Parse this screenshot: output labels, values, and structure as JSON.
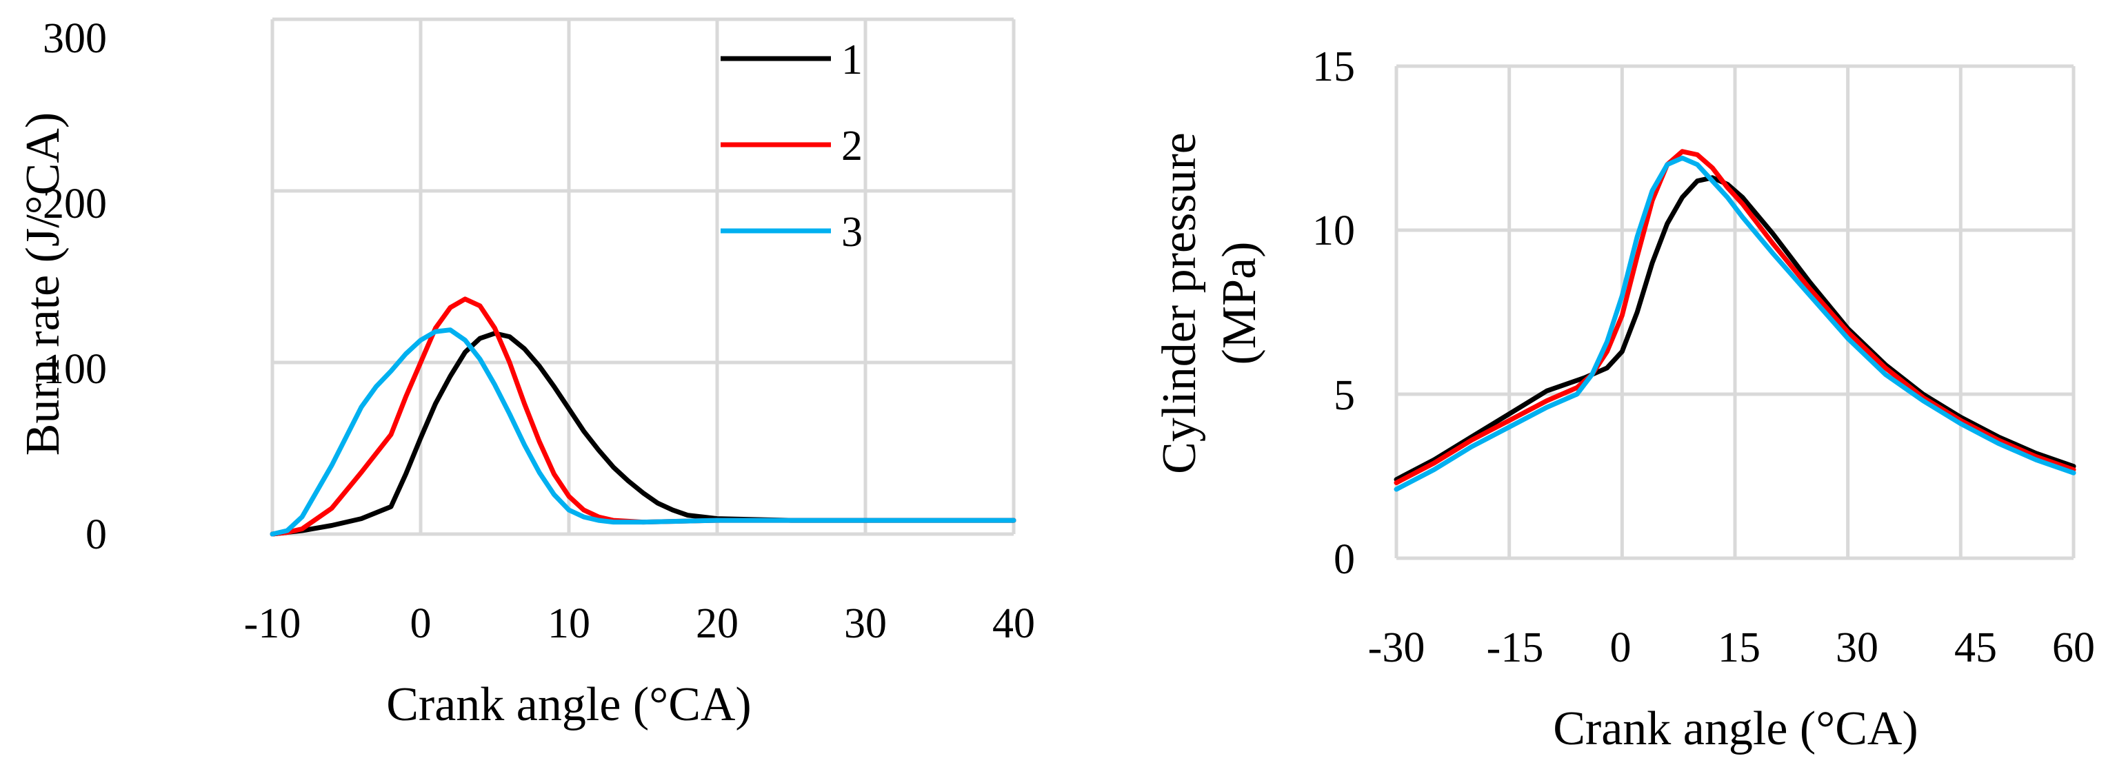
{
  "chart_data": [
    {
      "type": "line",
      "title": "",
      "xlabel": "Crank angle (°CA)",
      "ylabel": "Burn rate (J/°CA)",
      "xlim": [
        -10,
        40
      ],
      "ylim": [
        0,
        300
      ],
      "xticks": [
        "-10",
        "0",
        "10",
        "20",
        "30",
        "40"
      ],
      "yticks": [
        "0",
        "100",
        "200",
        "300"
      ],
      "grid": true,
      "legend_position": "top-right",
      "series": [
        {
          "name": "1",
          "color": "#000000",
          "points": [
            [
              -10,
              0
            ],
            [
              -9,
              1
            ],
            [
              -8,
              2
            ],
            [
              -6,
              5
            ],
            [
              -4,
              9
            ],
            [
              -2,
              16
            ],
            [
              -1,
              35
            ],
            [
              0,
              56
            ],
            [
              1,
              76
            ],
            [
              2,
              92
            ],
            [
              3,
              106
            ],
            [
              4,
              114
            ],
            [
              5,
              117
            ],
            [
              6,
              115
            ],
            [
              7,
              108
            ],
            [
              8,
              98
            ],
            [
              9,
              86
            ],
            [
              10,
              73
            ],
            [
              11,
              60
            ],
            [
              12,
              49
            ],
            [
              13,
              39
            ],
            [
              14,
              31
            ],
            [
              15,
              24
            ],
            [
              16,
              18
            ],
            [
              17,
              14
            ],
            [
              18,
              11
            ],
            [
              20,
              9
            ],
            [
              25,
              8
            ],
            [
              30,
              8
            ],
            [
              35,
              8
            ],
            [
              40,
              8
            ]
          ]
        },
        {
          "name": "2",
          "color": "#ff0000",
          "points": [
            [
              -10,
              0
            ],
            [
              -9,
              1
            ],
            [
              -8,
              3
            ],
            [
              -6,
              15
            ],
            [
              -4,
              36
            ],
            [
              -2,
              58
            ],
            [
              -1,
              80
            ],
            [
              0,
              100
            ],
            [
              1,
              120
            ],
            [
              2,
              132
            ],
            [
              3,
              137
            ],
            [
              4,
              133
            ],
            [
              5,
              120
            ],
            [
              6,
              100
            ],
            [
              7,
              76
            ],
            [
              8,
              54
            ],
            [
              9,
              35
            ],
            [
              10,
              22
            ],
            [
              11,
              14
            ],
            [
              12,
              10
            ],
            [
              13,
              8
            ],
            [
              15,
              7
            ],
            [
              20,
              8
            ],
            [
              30,
              8
            ],
            [
              40,
              8
            ]
          ]
        },
        {
          "name": "3",
          "color": "#00b0f0",
          "points": [
            [
              -10,
              0
            ],
            [
              -9,
              2
            ],
            [
              -8,
              10
            ],
            [
              -7,
              25
            ],
            [
              -6,
              40
            ],
            [
              -5,
              57
            ],
            [
              -4,
              74
            ],
            [
              -3,
              86
            ],
            [
              -2,
              95
            ],
            [
              -1,
              105
            ],
            [
              0,
              113
            ],
            [
              1,
              118
            ],
            [
              2,
              119
            ],
            [
              3,
              113
            ],
            [
              4,
              102
            ],
            [
              5,
              87
            ],
            [
              6,
              70
            ],
            [
              7,
              52
            ],
            [
              8,
              36
            ],
            [
              9,
              23
            ],
            [
              10,
              14
            ],
            [
              11,
              10
            ],
            [
              12,
              8
            ],
            [
              13,
              7
            ],
            [
              15,
              7
            ],
            [
              20,
              8
            ],
            [
              30,
              8
            ],
            [
              40,
              8
            ]
          ]
        }
      ]
    },
    {
      "type": "line",
      "title": "",
      "xlabel": "Crank angle (°CA)",
      "ylabel": "Cylinder pressure (MPa)",
      "ylabel_lines": [
        "Cylinder pressure",
        "(MPa)"
      ],
      "xlim": [
        -30,
        60
      ],
      "ylim": [
        0,
        15
      ],
      "xticks": [
        "-30",
        "-15",
        "0",
        "15",
        "30",
        "45",
        "60"
      ],
      "yticks": [
        "0",
        "5",
        "10",
        "15"
      ],
      "grid": true,
      "series": [
        {
          "name": "1",
          "color": "#000000",
          "points": [
            [
              -30,
              2.4
            ],
            [
              -25,
              3.0
            ],
            [
              -20,
              3.7
            ],
            [
              -15,
              4.4
            ],
            [
              -10,
              5.1
            ],
            [
              -5,
              5.5
            ],
            [
              -2,
              5.8
            ],
            [
              0,
              6.3
            ],
            [
              2,
              7.5
            ],
            [
              4,
              9.0
            ],
            [
              6,
              10.2
            ],
            [
              8,
              11.0
            ],
            [
              10,
              11.5
            ],
            [
              12,
              11.6
            ],
            [
              14,
              11.4
            ],
            [
              16,
              11.0
            ],
            [
              20,
              9.9
            ],
            [
              25,
              8.4
            ],
            [
              30,
              7.0
            ],
            [
              35,
              5.9
            ],
            [
              40,
              5.0
            ],
            [
              45,
              4.3
            ],
            [
              50,
              3.7
            ],
            [
              55,
              3.2
            ],
            [
              60,
              2.8
            ]
          ]
        },
        {
          "name": "2",
          "color": "#ff0000",
          "points": [
            [
              -30,
              2.3
            ],
            [
              -25,
              2.9
            ],
            [
              -20,
              3.6
            ],
            [
              -15,
              4.2
            ],
            [
              -10,
              4.8
            ],
            [
              -6,
              5.2
            ],
            [
              -4,
              5.6
            ],
            [
              -2,
              6.3
            ],
            [
              0,
              7.4
            ],
            [
              2,
              9.2
            ],
            [
              4,
              10.9
            ],
            [
              6,
              12.0
            ],
            [
              8,
              12.4
            ],
            [
              10,
              12.3
            ],
            [
              12,
              11.9
            ],
            [
              14,
              11.3
            ],
            [
              16,
              10.8
            ],
            [
              20,
              9.6
            ],
            [
              25,
              8.2
            ],
            [
              30,
              6.9
            ],
            [
              35,
              5.8
            ],
            [
              40,
              4.9
            ],
            [
              45,
              4.2
            ],
            [
              50,
              3.6
            ],
            [
              55,
              3.1
            ],
            [
              60,
              2.7
            ]
          ]
        },
        {
          "name": "3",
          "color": "#00b0f0",
          "points": [
            [
              -30,
              2.1
            ],
            [
              -25,
              2.7
            ],
            [
              -20,
              3.4
            ],
            [
              -15,
              4.0
            ],
            [
              -10,
              4.6
            ],
            [
              -6,
              5.0
            ],
            [
              -4,
              5.6
            ],
            [
              -2,
              6.6
            ],
            [
              0,
              8.0
            ],
            [
              2,
              9.8
            ],
            [
              4,
              11.2
            ],
            [
              6,
              12.0
            ],
            [
              8,
              12.2
            ],
            [
              10,
              12.0
            ],
            [
              12,
              11.5
            ],
            [
              14,
              11.0
            ],
            [
              16,
              10.4
            ],
            [
              20,
              9.3
            ],
            [
              25,
              8.0
            ],
            [
              30,
              6.7
            ],
            [
              35,
              5.6
            ],
            [
              40,
              4.8
            ],
            [
              45,
              4.1
            ],
            [
              50,
              3.5
            ],
            [
              55,
              3.0
            ],
            [
              60,
              2.6
            ]
          ]
        }
      ]
    }
  ]
}
